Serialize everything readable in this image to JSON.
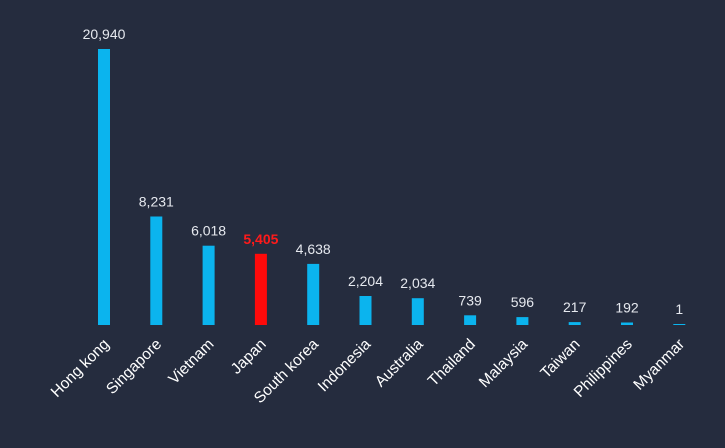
{
  "chart_data": {
    "type": "bar",
    "title": "",
    "xlabel": "",
    "ylabel": "",
    "categories": [
      "Hong kong",
      "Singapore",
      "Vietnam",
      "Japan",
      "South korea",
      "Indonesia",
      "Australia",
      "Thailand",
      "Malaysia",
      "Taiwan",
      "Philippines",
      "Myanmar"
    ],
    "values": [
      20940,
      8231,
      6018,
      5405,
      4638,
      2204,
      2034,
      739,
      596,
      217,
      192,
      1
    ],
    "value_labels": [
      "20,940",
      "8,231",
      "6,018",
      "5,405",
      "4,638",
      "2,204",
      "2,034",
      "739",
      "596",
      "217",
      "192",
      "1"
    ],
    "highlight_index": 3,
    "ylim": [
      0,
      20940
    ],
    "grid": false,
    "legend": "none",
    "colors": {
      "background": "#252c3e",
      "bar": "#0bb4ee",
      "highlight": "#ff0a0a",
      "value_text": "#e6e9ef",
      "highlight_text": "#ff1a1a",
      "category_text": "#ffffff"
    }
  }
}
